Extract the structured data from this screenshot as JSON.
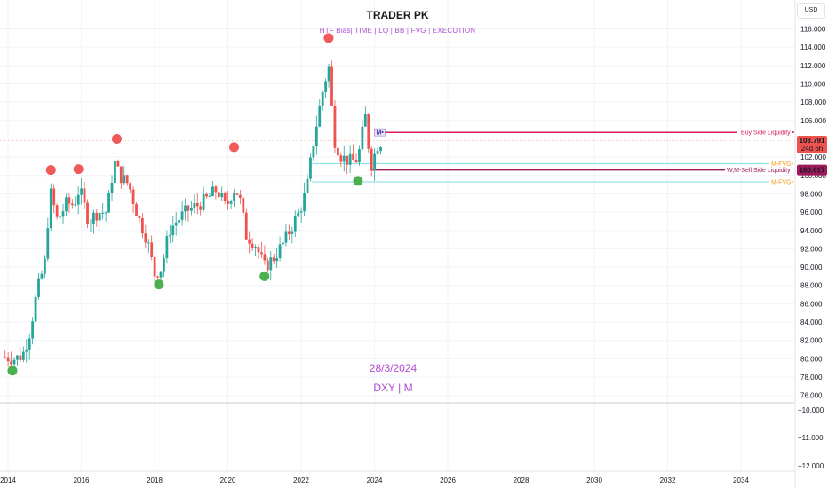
{
  "header": {
    "title": "TRADER PK",
    "subtitle": "HTF Bias| TIME  |  LQ  |  BB  |  FVG  | EXECUTION",
    "currency": "USD"
  },
  "watermark": {
    "date": "28/3/2024",
    "symbol": "DXY | M"
  },
  "colors": {
    "up": "#26a69a",
    "down": "#ef5350",
    "swing_high": "#f05a5a",
    "swing_low": "#4caf50",
    "buy_liquidity": "#d81b60",
    "sell_liquidity": "#9c1a5a",
    "fvg": "#80deea",
    "fvg_label": "#f39c12",
    "accent": "#b04ad0"
  },
  "chart_data": {
    "type": "candlestick",
    "symbol": "DXY",
    "timeframe": "M",
    "x_ticks": [
      "2014",
      "2016",
      "2018",
      "2020",
      "2022",
      "2024",
      "2026",
      "2028",
      "2030",
      "2032",
      "2034"
    ],
    "y_ticks_main": [
      "116.000",
      "114.000",
      "112.000",
      "110.000",
      "108.000",
      "106.000",
      "102.000",
      "100.000",
      "98.000",
      "96.000",
      "94.000",
      "92.000",
      "90.000",
      "88.000",
      "86.000",
      "84.000",
      "82.000",
      "80.000",
      "78.000",
      "76.000"
    ],
    "y_ticks_lower": [
      "−10.000",
      "−11.000",
      "−12.000"
    ],
    "ylim": [
      75,
      117
    ],
    "last_price": "103.791",
    "countdown": "24d 6h",
    "sell_price_tag": "100.617",
    "levels": [
      {
        "name": "Buy Side Liquidity",
        "value": 104.7
      },
      {
        "name": "M-FVG",
        "value": 101.3
      },
      {
        "name": "W,M-Sell Side Liquidity",
        "value": 100.6
      },
      {
        "name": "M-FVG",
        "value": 99.3
      }
    ],
    "marker_text": "M",
    "swing_highs": [
      {
        "date": 2015.17,
        "value": 100.4
      },
      {
        "date": 2015.92,
        "value": 100.5
      },
      {
        "date": 2016.97,
        "value": 103.8
      },
      {
        "date": 2020.17,
        "value": 102.9
      },
      {
        "date": 2022.75,
        "value": 114.8
      }
    ],
    "swing_lows": [
      {
        "date": 2014.12,
        "value": 78.9
      },
      {
        "date": 2018.12,
        "value": 88.3
      },
      {
        "date": 2021.0,
        "value": 89.2
      },
      {
        "date": 2023.55,
        "value": 99.6
      }
    ],
    "monthly_close": [
      {
        "date": 2013.9,
        "value": 80.2
      },
      {
        "date": 2014.2,
        "value": 80.0
      },
      {
        "date": 2014.4,
        "value": 80.4
      },
      {
        "date": 2014.6,
        "value": 83.0
      },
      {
        "date": 2014.8,
        "value": 87.5
      },
      {
        "date": 2015.0,
        "value": 90.3
      },
      {
        "date": 2015.15,
        "value": 98.3
      },
      {
        "date": 2015.35,
        "value": 95.0
      },
      {
        "date": 2015.6,
        "value": 97.0
      },
      {
        "date": 2015.8,
        "value": 96.8
      },
      {
        "date": 2015.95,
        "value": 98.6
      },
      {
        "date": 2016.2,
        "value": 95.0
      },
      {
        "date": 2016.45,
        "value": 96.0
      },
      {
        "date": 2016.7,
        "value": 96.0
      },
      {
        "date": 2016.9,
        "value": 101.5
      },
      {
        "date": 2017.05,
        "value": 100.0
      },
      {
        "date": 2017.3,
        "value": 99.0
      },
      {
        "date": 2017.55,
        "value": 95.5
      },
      {
        "date": 2017.8,
        "value": 93.0
      },
      {
        "date": 2018.0,
        "value": 89.2
      },
      {
        "date": 2018.2,
        "value": 90.0
      },
      {
        "date": 2018.4,
        "value": 94.0
      },
      {
        "date": 2018.6,
        "value": 95.0
      },
      {
        "date": 2018.9,
        "value": 96.2
      },
      {
        "date": 2019.2,
        "value": 96.8
      },
      {
        "date": 2019.45,
        "value": 97.5
      },
      {
        "date": 2019.7,
        "value": 98.5
      },
      {
        "date": 2019.95,
        "value": 96.5
      },
      {
        "date": 2020.15,
        "value": 98.5
      },
      {
        "date": 2020.3,
        "value": 98.0
      },
      {
        "date": 2020.5,
        "value": 93.5
      },
      {
        "date": 2020.75,
        "value": 92.5
      },
      {
        "date": 2021.0,
        "value": 90.0
      },
      {
        "date": 2021.25,
        "value": 91.0
      },
      {
        "date": 2021.5,
        "value": 92.5
      },
      {
        "date": 2021.75,
        "value": 94.5
      },
      {
        "date": 2021.95,
        "value": 96.0
      },
      {
        "date": 2022.15,
        "value": 98.5
      },
      {
        "date": 2022.35,
        "value": 104.0
      },
      {
        "date": 2022.55,
        "value": 108.5
      },
      {
        "date": 2022.75,
        "value": 112.0
      },
      {
        "date": 2022.9,
        "value": 104.0
      },
      {
        "date": 2023.1,
        "value": 102.0
      },
      {
        "date": 2023.35,
        "value": 101.5
      },
      {
        "date": 2023.55,
        "value": 101.8
      },
      {
        "date": 2023.75,
        "value": 106.5
      },
      {
        "date": 2023.9,
        "value": 101.0
      },
      {
        "date": 2024.1,
        "value": 103.5
      },
      {
        "date": 2024.25,
        "value": 103.8
      }
    ]
  }
}
